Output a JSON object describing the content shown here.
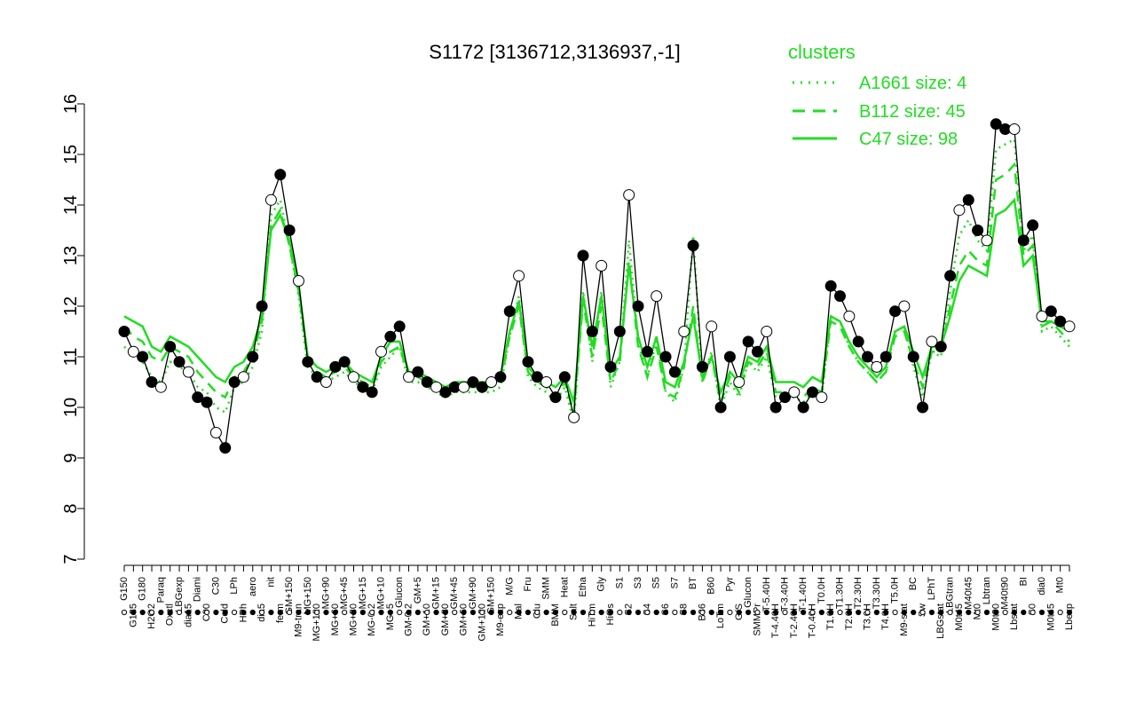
{
  "chart_data": {
    "type": "line",
    "title": "S1172 [3136712,3136937,-1]",
    "xlabel": "",
    "ylabel": "",
    "ylim": [
      7,
      16
    ],
    "yticks": [
      7,
      8,
      9,
      10,
      11,
      12,
      13,
      14,
      15,
      16
    ],
    "grid": false,
    "legend": {
      "title": "clusters",
      "placement": "top-right",
      "entries": [
        {
          "label": "A1661 size: 4",
          "style": "dotted"
        },
        {
          "label": "B112 size: 45",
          "style": "dashed"
        },
        {
          "label": "C47 size: 98",
          "style": "solid"
        }
      ]
    },
    "x_tick_labels": [
      "G150",
      "G135",
      "G180",
      "H2O2",
      "Paraq",
      "Oxctl",
      "LBGexp",
      "dia15",
      "Diami",
      "C90",
      "C30",
      "Cold",
      "LPh",
      "HPh",
      "aero",
      "dia5",
      "nit",
      "ferm",
      "GM+150",
      "M9-tran",
      "MG+150",
      "MG+120",
      "MG+90",
      "MG+60",
      "MG+45",
      "MG+30",
      "MG+15",
      "MG-0.2",
      "MG+10",
      "MG+5",
      "Glucon",
      "GM-0.2",
      "GM+5",
      "GM+10",
      "GM+15",
      "GM+30",
      "GM+45",
      "GM+60",
      "GM+90",
      "GM+120",
      "GM+150",
      "M9-exp",
      "M/G",
      "Mal",
      "Fru",
      "Glu",
      "SMM",
      "BMM",
      "Heat",
      "Salt",
      "Etha",
      "HiTm",
      "Gly",
      "HiOs",
      "S1",
      "S2",
      "S3",
      "S4",
      "S5",
      "S6",
      "S7",
      "S8",
      "BT",
      "B36",
      "B60",
      "LoTm",
      "Pyr",
      "G/S",
      "Glucon",
      "SMMPr",
      "T-5.40H",
      "T-4.40H",
      "T-3.40H",
      "T-2.40H",
      "T-1.40H",
      "T-0.40H",
      "T0.0H",
      "T1.0H",
      "T1.30H",
      "T2.0H",
      "T2.30H",
      "T3.0H",
      "T3.30H",
      "T4.0H",
      "T5.0H",
      "M9-stat",
      "BC",
      "Sw",
      "LPhT",
      "LBGstat",
      "LBGtran",
      "M0t45",
      "M40t45",
      "Mt0",
      "Lbtran",
      "M0t90",
      "M40t90",
      "Lbstat",
      "BI",
      "S0",
      "dia0",
      "M0t45",
      "Mt0",
      "Lbexp"
    ],
    "x": [
      1,
      2,
      3,
      4,
      5,
      6,
      7,
      8,
      9,
      10,
      11,
      12,
      13,
      14,
      15,
      16,
      17,
      18,
      19,
      20,
      21,
      22,
      23,
      24,
      25,
      26,
      27,
      28,
      29,
      30,
      31,
      32,
      33,
      34,
      35,
      36,
      37,
      38,
      39,
      40,
      41,
      42,
      43,
      44,
      45,
      46,
      47,
      48,
      49,
      50,
      51,
      52,
      53,
      54,
      55,
      56,
      57,
      58,
      59,
      60,
      61,
      62,
      63,
      64,
      65,
      66,
      67,
      68,
      69,
      70,
      71,
      72,
      73,
      74,
      75,
      76,
      77,
      78,
      79,
      80,
      81,
      82,
      83,
      84,
      85,
      86,
      87,
      88,
      89,
      90,
      91,
      92,
      93,
      94,
      95,
      96,
      97,
      98,
      99,
      100,
      101,
      102,
      103,
      104
    ],
    "series": [
      {
        "style": "points-line",
        "values": [
          11.5,
          11.1,
          11.0,
          10.5,
          10.4,
          11.2,
          10.9,
          10.7,
          10.2,
          10.1,
          9.5,
          9.2,
          10.5,
          10.6,
          11.0,
          12.0,
          14.1,
          14.6,
          13.5,
          12.5,
          10.9,
          10.6,
          10.5,
          10.8,
          10.9,
          10.6,
          10.4,
          10.3,
          11.1,
          11.4,
          11.6,
          10.6,
          10.7,
          10.5,
          10.4,
          10.3,
          10.4,
          10.4,
          10.5,
          10.4,
          10.5,
          10.6,
          11.9,
          12.6,
          10.9,
          10.6,
          10.5,
          10.2,
          10.6,
          9.8,
          13.0,
          11.5,
          12.8,
          10.8,
          11.5,
          14.2,
          12.0,
          11.1,
          12.2,
          11.0,
          10.7,
          11.5,
          13.2,
          10.8,
          11.6,
          10.0,
          11.0,
          10.5,
          11.3,
          11.1,
          11.5,
          10.0,
          10.2,
          10.3,
          10.0,
          10.3,
          10.2,
          12.4,
          12.2,
          11.8,
          11.3,
          11.0,
          10.8,
          11.0,
          11.9,
          12.0,
          11.0,
          10.0,
          11.3,
          11.2,
          12.6,
          13.9,
          14.1,
          13.5,
          13.3,
          15.6,
          15.5,
          15.5,
          13.3,
          13.6,
          11.8,
          11.9,
          11.7,
          11.6
        ]
      },
      {
        "name": "C47 size: 98",
        "style": "solid",
        "values": [
          11.8,
          11.7,
          11.6,
          11.2,
          11.1,
          11.4,
          11.3,
          11.2,
          11.0,
          10.8,
          10.6,
          10.5,
          10.8,
          10.9,
          11.2,
          11.8,
          13.5,
          13.8,
          13.3,
          12.4,
          11.0,
          10.8,
          10.7,
          10.8,
          10.9,
          10.7,
          10.6,
          10.5,
          11.0,
          11.3,
          11.3,
          10.7,
          10.7,
          10.6,
          10.5,
          10.4,
          10.5,
          10.5,
          10.5,
          10.5,
          10.5,
          10.6,
          11.5,
          12.1,
          10.8,
          10.6,
          10.5,
          10.4,
          10.6,
          10.1,
          12.2,
          11.2,
          12.2,
          10.7,
          11.0,
          12.8,
          11.4,
          10.8,
          11.4,
          10.5,
          10.4,
          10.9,
          11.8,
          10.6,
          11.0,
          10.3,
          10.7,
          10.5,
          11.0,
          10.9,
          11.2,
          10.5,
          10.5,
          10.5,
          10.4,
          10.6,
          10.5,
          11.8,
          11.7,
          11.3,
          11.0,
          10.8,
          10.6,
          10.8,
          11.5,
          11.6,
          11.1,
          10.6,
          11.2,
          11.2,
          11.8,
          12.5,
          12.8,
          12.7,
          12.6,
          13.8,
          13.9,
          14.1,
          12.8,
          13.0,
          11.7,
          11.7,
          11.6,
          11.5
        ]
      },
      {
        "name": "B112 size: 45",
        "style": "dashed",
        "values": [
          11.6,
          11.4,
          11.3,
          11.0,
          10.9,
          11.2,
          11.1,
          11.0,
          10.7,
          10.5,
          10.3,
          10.2,
          10.6,
          10.7,
          11.0,
          11.7,
          13.6,
          13.9,
          13.2,
          12.3,
          10.9,
          10.7,
          10.6,
          10.7,
          10.8,
          10.6,
          10.5,
          10.4,
          10.9,
          11.1,
          11.2,
          10.6,
          10.6,
          10.5,
          10.4,
          10.3,
          10.4,
          10.4,
          10.4,
          10.4,
          10.4,
          10.5,
          11.4,
          12.0,
          10.7,
          10.5,
          10.4,
          10.2,
          10.5,
          9.9,
          12.1,
          11.0,
          12.0,
          10.5,
          10.9,
          12.9,
          11.2,
          10.6,
          11.2,
          10.3,
          10.2,
          10.8,
          12.0,
          10.5,
          11.0,
          10.1,
          10.6,
          10.3,
          10.9,
          10.8,
          11.1,
          10.3,
          10.3,
          10.3,
          10.2,
          10.4,
          10.3,
          11.7,
          11.6,
          11.2,
          10.9,
          10.7,
          10.5,
          10.7,
          11.4,
          11.5,
          10.9,
          10.4,
          11.1,
          11.1,
          12.0,
          12.8,
          13.1,
          12.9,
          12.8,
          14.5,
          14.6,
          14.8,
          13.0,
          13.2,
          11.6,
          11.7,
          11.5,
          11.3
        ]
      },
      {
        "name": "A1661 size: 4",
        "style": "dotted",
        "values": [
          11.2,
          11.0,
          10.9,
          10.6,
          10.5,
          10.9,
          10.8,
          10.7,
          10.4,
          10.3,
          10.0,
          9.9,
          10.4,
          10.5,
          10.8,
          11.5,
          13.8,
          14.1,
          13.2,
          12.2,
          10.8,
          10.6,
          10.5,
          10.6,
          10.7,
          10.5,
          10.4,
          10.3,
          10.8,
          11.0,
          11.2,
          10.5,
          10.5,
          10.4,
          10.3,
          10.2,
          10.3,
          10.3,
          10.3,
          10.3,
          10.3,
          10.4,
          11.4,
          12.2,
          10.6,
          10.4,
          10.3,
          10.1,
          10.4,
          9.7,
          12.3,
          10.9,
          12.3,
          10.4,
          10.9,
          13.3,
          11.3,
          10.6,
          11.3,
          10.3,
          10.1,
          10.8,
          13.4,
          10.5,
          11.1,
          10.0,
          10.5,
          10.2,
          10.9,
          10.7,
          11.0,
          10.2,
          10.2,
          10.2,
          10.1,
          10.3,
          10.2,
          11.8,
          11.7,
          11.2,
          10.9,
          10.7,
          10.5,
          10.7,
          11.5,
          11.6,
          10.8,
          10.2,
          11.1,
          11.0,
          12.3,
          13.4,
          13.7,
          13.3,
          13.1,
          15.1,
          15.2,
          15.3,
          13.1,
          13.4,
          11.5,
          11.6,
          11.4,
          11.2
        ]
      }
    ],
    "colors": {
      "points_line": "#000000",
      "cluster_lines": "#22dd22",
      "point_fill_filled": "#000000",
      "point_fill_open": "#ffffff",
      "axis": "#000000"
    }
  }
}
